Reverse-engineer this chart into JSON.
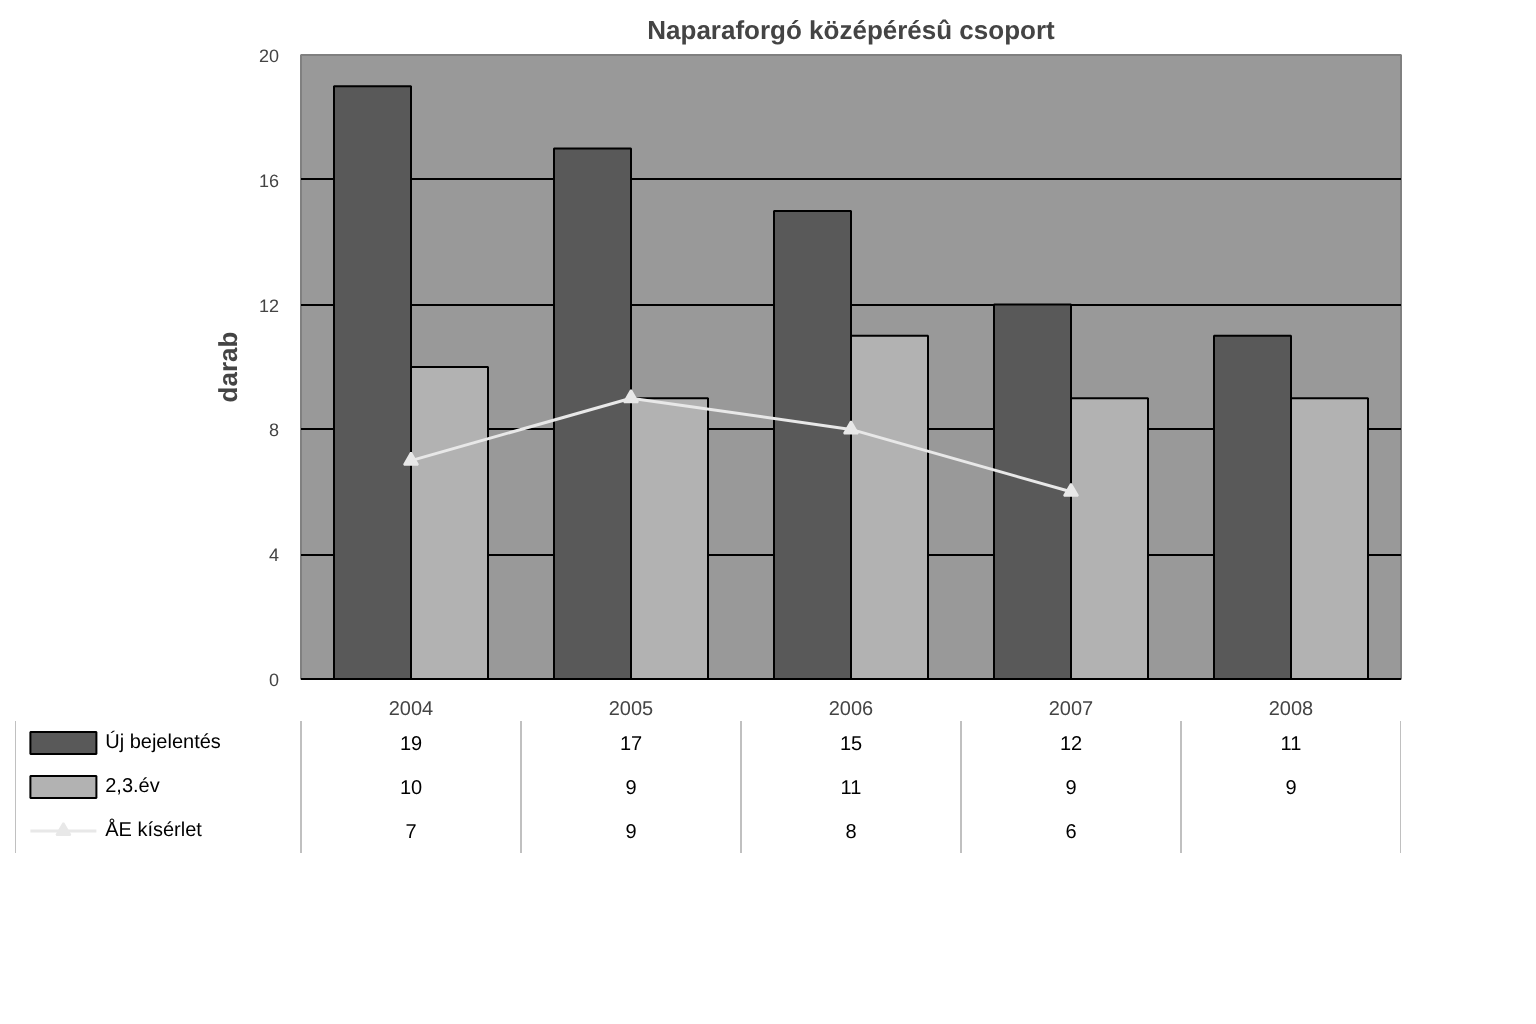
{
  "chart_data": {
    "type": "bar",
    "title": "Naparaforgó középérésû csoport",
    "ylabel": "darab",
    "categories": [
      "2004",
      "2005",
      "2006",
      "2007",
      "2008"
    ],
    "series": [
      {
        "name": "Új bejelentés",
        "color": "#595959",
        "values": [
          19,
          17,
          15,
          12,
          11
        ]
      },
      {
        "name": "2,3.év",
        "color": "#b2b2b2",
        "values": [
          10,
          9,
          11,
          9,
          9
        ]
      },
      {
        "name": "ÅE kísérlet",
        "type": "line",
        "color": "#e8e8e8",
        "marker": "triangle",
        "line_style": "solid",
        "values": [
          7,
          9,
          8,
          6,
          null
        ]
      }
    ],
    "ylim": [
      0,
      20
    ],
    "yticks": [
      0,
      4,
      8,
      12,
      16,
      20
    ],
    "grid": "y",
    "data_labels": true,
    "legend": "bottom left"
  }
}
